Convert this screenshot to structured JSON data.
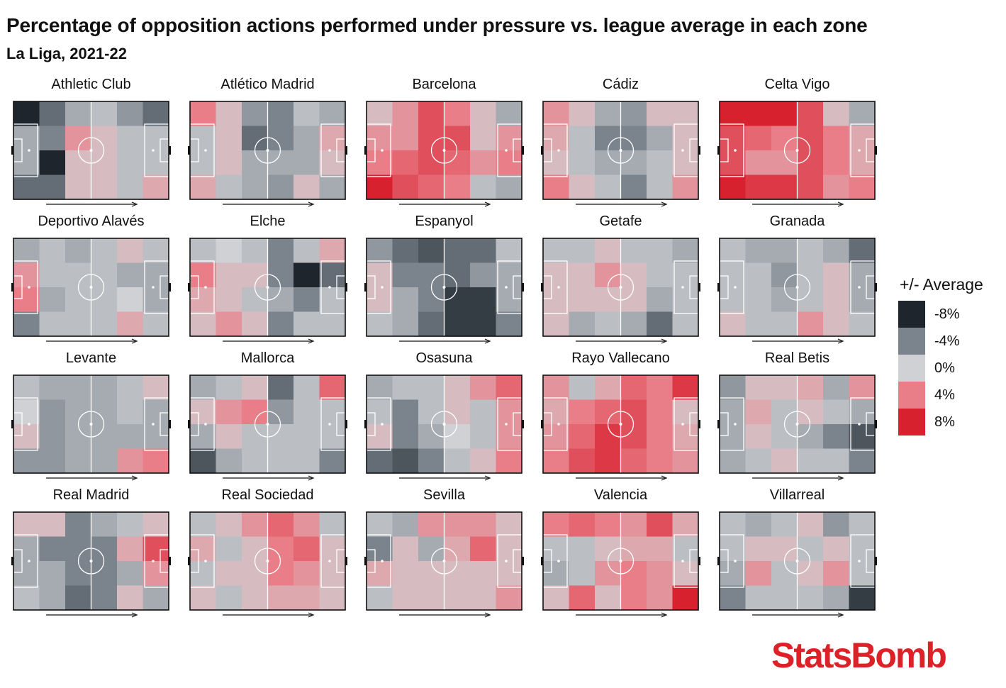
{
  "title": "Percentage of opposition actions performed under pressure vs. league average in each zone",
  "subtitle": "La Liga, 2021-22",
  "brand": "StatsBomb",
  "colors": {
    "neg8": "#1e252c",
    "neg4": "#7b848d",
    "zero": "#d0d1d4",
    "pos4": "#e97e88",
    "pos8": "#d7212f",
    "pitch_line": "#ffffff",
    "frame": "#111111"
  },
  "legend": {
    "title": "+/- Average",
    "items": [
      {
        "label": "-8%",
        "value": -8
      },
      {
        "label": "-4%",
        "value": -4
      },
      {
        "label": "0%",
        "value": 0
      },
      {
        "label": "4%",
        "value": 4
      },
      {
        "label": "8%",
        "value": 8
      }
    ]
  },
  "chart_data": {
    "type": "heatmap",
    "zones": "6 columns x 4 rows per pitch",
    "color_scale": [
      -8,
      8
    ],
    "teams": [
      {
        "name": "Athletic Club",
        "values": [
          [
            -9,
            -5,
            -2,
            -1,
            -3,
            -5
          ],
          [
            -2,
            -4,
            3,
            1,
            -1,
            -1
          ],
          [
            -2,
            -8,
            1,
            1,
            -1,
            -1
          ],
          [
            -5,
            -5,
            1,
            1,
            -1,
            2
          ]
        ]
      },
      {
        "name": "Atlético Madrid",
        "values": [
          [
            4,
            1,
            -3,
            -4,
            -1,
            -2
          ],
          [
            -1,
            1,
            -5,
            -4,
            -2,
            2
          ],
          [
            -1,
            1,
            -2,
            -2,
            -2,
            1
          ],
          [
            2,
            -1,
            -2,
            -3,
            1,
            -2
          ]
        ]
      },
      {
        "name": "Barcelona",
        "values": [
          [
            1,
            3,
            6,
            4,
            1,
            -2
          ],
          [
            3,
            3,
            6,
            6,
            1,
            3
          ],
          [
            4,
            5,
            6,
            5,
            3,
            4
          ],
          [
            8,
            6,
            5,
            4,
            -1,
            -2
          ]
        ]
      },
      {
        "name": "Cádiz",
        "values": [
          [
            3,
            1,
            -2,
            -3,
            1,
            1
          ],
          [
            2,
            -1,
            -4,
            -4,
            -2,
            1
          ],
          [
            1,
            -1,
            -2,
            -2,
            -1,
            1
          ],
          [
            4,
            1,
            -1,
            -4,
            -1,
            3
          ]
        ]
      },
      {
        "name": "Celta Vigo",
        "values": [
          [
            8,
            8,
            8,
            6,
            1,
            -2
          ],
          [
            6,
            5,
            4,
            6,
            4,
            2
          ],
          [
            6,
            3,
            3,
            6,
            4,
            2
          ],
          [
            8,
            7,
            7,
            6,
            3,
            4
          ]
        ]
      },
      {
        "name": "Deportivo Alavés",
        "values": [
          [
            -2,
            -1,
            -2,
            -1,
            1,
            -1
          ],
          [
            3,
            -1,
            -1,
            -1,
            -2,
            -2
          ],
          [
            4,
            -2,
            -1,
            -1,
            0,
            -2
          ],
          [
            -4,
            -1,
            -1,
            -1,
            2,
            -1
          ]
        ]
      },
      {
        "name": "Elche",
        "values": [
          [
            -1,
            0,
            -1,
            -4,
            -1,
            2
          ],
          [
            4,
            1,
            1,
            -4,
            -9,
            -5
          ],
          [
            2,
            1,
            -1,
            -2,
            -4,
            -1
          ],
          [
            1,
            3,
            1,
            -4,
            -1,
            -1
          ]
        ]
      },
      {
        "name": "Espanyol",
        "values": [
          [
            -3,
            -5,
            -6,
            -5,
            -5,
            -1
          ],
          [
            1,
            -4,
            -4,
            -5,
            -3,
            -2
          ],
          [
            1,
            -2,
            -4,
            -7,
            -7,
            -2
          ],
          [
            -1,
            -2,
            -5,
            -7,
            -7,
            -4
          ]
        ]
      },
      {
        "name": "Getafe",
        "values": [
          [
            -1,
            -1,
            1,
            -1,
            -1,
            -2
          ],
          [
            1,
            1,
            3,
            1,
            -1,
            -1
          ],
          [
            1,
            1,
            1,
            1,
            -2,
            -1
          ],
          [
            1,
            -2,
            -1,
            -2,
            -5,
            -1
          ]
        ]
      },
      {
        "name": "Granada",
        "values": [
          [
            -1,
            -2,
            -2,
            -1,
            -2,
            -5
          ],
          [
            -1,
            -1,
            -3,
            -1,
            1,
            -2
          ],
          [
            -1,
            -1,
            -2,
            -1,
            1,
            -2
          ],
          [
            1,
            -1,
            -1,
            3,
            1,
            -1
          ]
        ]
      },
      {
        "name": "Levante",
        "values": [
          [
            -1,
            -2,
            -2,
            -2,
            -1,
            1
          ],
          [
            0,
            -3,
            -2,
            -2,
            -1,
            -2
          ],
          [
            1,
            -3,
            -2,
            -2,
            -2,
            -2
          ],
          [
            -3,
            -3,
            -2,
            -2,
            3,
            4
          ]
        ]
      },
      {
        "name": "Mallorca",
        "values": [
          [
            -2,
            -1,
            1,
            -5,
            -1,
            5
          ],
          [
            1,
            3,
            4,
            -3,
            -1,
            -1
          ],
          [
            -2,
            1,
            -1,
            -1,
            -1,
            -1
          ],
          [
            -6,
            -2,
            -1,
            -1,
            -1,
            -4
          ]
        ]
      },
      {
        "name": "Osasuna",
        "values": [
          [
            -2,
            -1,
            -1,
            1,
            3,
            5
          ],
          [
            -1,
            -4,
            -1,
            1,
            -1,
            3
          ],
          [
            1,
            -4,
            -2,
            0,
            -1,
            3
          ],
          [
            -5,
            -6,
            -4,
            -1,
            1,
            4
          ]
        ]
      },
      {
        "name": "Rayo Vallecano",
        "values": [
          [
            3,
            -1,
            2,
            5,
            4,
            7
          ],
          [
            2,
            4,
            5,
            6,
            4,
            1
          ],
          [
            3,
            5,
            7,
            6,
            4,
            2
          ],
          [
            4,
            6,
            7,
            5,
            4,
            3
          ]
        ]
      },
      {
        "name": "Real Betis",
        "values": [
          [
            -3,
            1,
            1,
            2,
            -2,
            3
          ],
          [
            -2,
            2,
            -1,
            1,
            -1,
            -2
          ],
          [
            -2,
            1,
            -1,
            -2,
            -4,
            -6
          ],
          [
            -2,
            -1,
            1,
            -1,
            -1,
            -4
          ]
        ]
      },
      {
        "name": "Real Madrid",
        "values": [
          [
            1,
            1,
            -4,
            -2,
            -1,
            1
          ],
          [
            -2,
            -4,
            -4,
            -4,
            2,
            6
          ],
          [
            -2,
            -2,
            -4,
            -4,
            -2,
            3
          ],
          [
            -1,
            -2,
            -5,
            -4,
            1,
            -2
          ]
        ]
      },
      {
        "name": "Real Sociedad",
        "values": [
          [
            -1,
            1,
            3,
            5,
            3,
            -1
          ],
          [
            2,
            -1,
            1,
            4,
            5,
            1
          ],
          [
            -1,
            1,
            1,
            4,
            3,
            1
          ],
          [
            1,
            -1,
            1,
            2,
            2,
            1
          ]
        ]
      },
      {
        "name": "Sevilla",
        "values": [
          [
            -1,
            -2,
            3,
            3,
            3,
            1
          ],
          [
            -4,
            1,
            -2,
            2,
            5,
            1
          ],
          [
            2,
            1,
            1,
            1,
            1,
            1
          ],
          [
            -1,
            1,
            1,
            1,
            1,
            3
          ]
        ]
      },
      {
        "name": "Valencia",
        "values": [
          [
            4,
            5,
            4,
            3,
            6,
            2
          ],
          [
            -1,
            -1,
            1,
            2,
            2,
            -1
          ],
          [
            -2,
            -1,
            3,
            4,
            3,
            1
          ],
          [
            1,
            5,
            1,
            4,
            3,
            8
          ]
        ]
      },
      {
        "name": "Villarreal",
        "values": [
          [
            -1,
            -2,
            -1,
            1,
            -3,
            -1
          ],
          [
            -1,
            1,
            1,
            -1,
            1,
            -1
          ],
          [
            -2,
            3,
            -1,
            1,
            3,
            -1
          ],
          [
            -4,
            -1,
            -1,
            -1,
            -2,
            -7
          ]
        ]
      }
    ]
  }
}
